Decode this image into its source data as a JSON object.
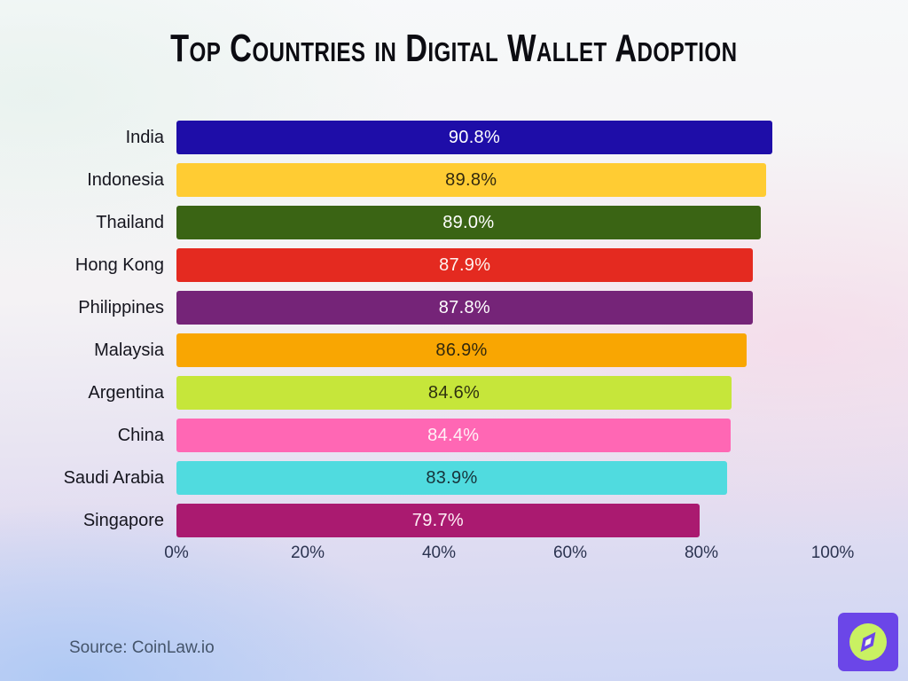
{
  "title": "Top Countries in Digital Wallet Adoption",
  "source": "Source: CoinLaw.io",
  "axis": {
    "ticks": [
      "0%",
      "20%",
      "40%",
      "60%",
      "80%",
      "100%"
    ]
  },
  "bars": [
    {
      "country": "India",
      "label": "90.8%",
      "value": 90.8,
      "color": "#1E0DA8",
      "text_color": "#FFFFFF"
    },
    {
      "country": "Indonesia",
      "label": "89.8%",
      "value": 89.8,
      "color": "#FFCC33",
      "text_color": "#33290E"
    },
    {
      "country": "Thailand",
      "label": "89.0%",
      "value": 89.0,
      "color": "#3A6414",
      "text_color": "#FFFFFF"
    },
    {
      "country": "Hong Kong",
      "label": "87.9%",
      "value": 87.9,
      "color": "#E42A20",
      "text_color": "#FFF3EF"
    },
    {
      "country": "Philippines",
      "label": "87.8%",
      "value": 87.8,
      "color": "#752478",
      "text_color": "#FFFFFF"
    },
    {
      "country": "Malaysia",
      "label": "86.9%",
      "value": 86.9,
      "color": "#F9A602",
      "text_color": "#33290E"
    },
    {
      "country": "Argentina",
      "label": "84.6%",
      "value": 84.6,
      "color": "#C6E63A",
      "text_color": "#2E3110"
    },
    {
      "country": "China",
      "label": "84.4%",
      "value": 84.4,
      "color": "#FF67B4",
      "text_color": "#FFF2F7"
    },
    {
      "country": "Saudi Arabia",
      "label": "83.9%",
      "value": 83.9,
      "color": "#50DBDF",
      "text_color": "#17343B"
    },
    {
      "country": "Singapore",
      "label": "79.7%",
      "value": 79.7,
      "color": "#AA1A70",
      "text_color": "#FFEFF6"
    }
  ],
  "logo": {
    "bg_color": "#6B46E8",
    "circle_color": "#C9F162",
    "highlight_color": "#F2FBE2"
  },
  "chart_data": {
    "type": "bar",
    "orientation": "horizontal",
    "title": "Top Countries in Digital Wallet Adoption",
    "categories": [
      "India",
      "Indonesia",
      "Thailand",
      "Hong Kong",
      "Philippines",
      "Malaysia",
      "Argentina",
      "China",
      "Saudi Arabia",
      "Singapore"
    ],
    "values": [
      90.8,
      89.8,
      89.0,
      87.9,
      87.8,
      86.9,
      84.6,
      84.4,
      83.9,
      79.7
    ],
    "value_labels": [
      "90.8%",
      "89.8%",
      "89.0%",
      "87.9%",
      "87.8%",
      "86.9%",
      "84.6%",
      "84.4%",
      "83.9%",
      "79.7%"
    ],
    "xlabel": "",
    "ylabel": "",
    "xlim": [
      0,
      100
    ],
    "xticks": [
      "0%",
      "20%",
      "40%",
      "60%",
      "80%",
      "100%"
    ],
    "grid": false,
    "legend": false,
    "bar_colors": [
      "#1E0DA8",
      "#FFCC33",
      "#3A6414",
      "#E42A20",
      "#752478",
      "#F9A602",
      "#C6E63A",
      "#FF67B4",
      "#50DBDF",
      "#AA1A70"
    ],
    "data_label_position": "center"
  }
}
